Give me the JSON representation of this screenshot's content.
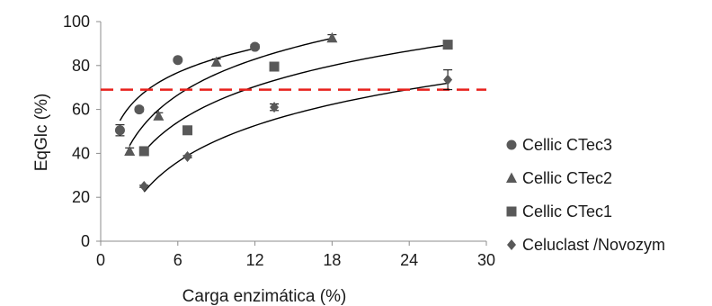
{
  "chart_data": {
    "type": "scatter",
    "xlabel": "Carga enzimática (%)",
    "ylabel": "EqGlc (%)",
    "xlim": [
      0,
      30
    ],
    "ylim": [
      0,
      100
    ],
    "xticks": [
      0,
      6,
      12,
      18,
      24,
      30
    ],
    "yticks": [
      0,
      20,
      40,
      60,
      80,
      100
    ],
    "grid": false,
    "legend_position": "right",
    "reference_line": {
      "y": 69,
      "style": "dashed",
      "color": "#e8201c"
    },
    "series": [
      {
        "name": "Cellic CTec3",
        "marker": "circle",
        "color": "#595959",
        "points": [
          [
            1.5,
            50.5
          ],
          [
            3,
            60
          ],
          [
            6,
            82.5
          ],
          [
            12,
            88.5
          ]
        ],
        "errors": [
          2.5,
          1,
          0.5,
          1
        ],
        "fit": {
          "a": 48.5,
          "b": 15.8,
          "x_range": [
            1.5,
            12
          ]
        }
      },
      {
        "name": "Cellic CTec2",
        "marker": "triangle",
        "color": "#595959",
        "points": [
          [
            2.25,
            41
          ],
          [
            4.5,
            57
          ],
          [
            9,
            81.5
          ],
          [
            18,
            92.5
          ]
        ],
        "errors": [
          1.5,
          1.5,
          1.5,
          1.5
        ],
        "fit": {
          "a": 24.5,
          "b": 23.5,
          "x_range": [
            2.25,
            18
          ]
        }
      },
      {
        "name": "Cellic CTec1",
        "marker": "square",
        "color": "#595959",
        "points": [
          [
            3.375,
            41
          ],
          [
            6.75,
            50.5
          ],
          [
            13.5,
            79.5
          ],
          [
            27,
            89.5
          ]
        ],
        "errors": [
          0.5,
          0.5,
          0.5,
          0.5
        ],
        "fit": {
          "a": 12.3,
          "b": 23.4,
          "x_range": [
            3.375,
            27
          ]
        }
      },
      {
        "name": "Celuclast /Novozym",
        "marker": "diamond",
        "color": "#595959",
        "points": [
          [
            3.375,
            25
          ],
          [
            6.75,
            38.5
          ],
          [
            13.5,
            61
          ],
          [
            27,
            73.5
          ]
        ],
        "errors": [
          0.5,
          0.5,
          1.5,
          4.5
        ],
        "fit": {
          "a": -6.5,
          "b": 23.8,
          "x_range": [
            3.375,
            27
          ]
        }
      }
    ]
  }
}
